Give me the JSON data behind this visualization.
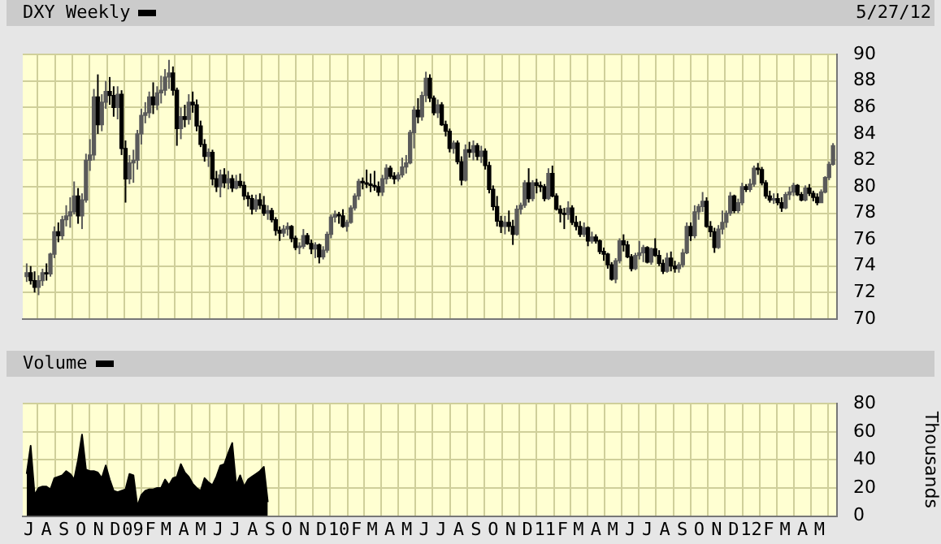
{
  "chart_data": [
    {
      "type": "candlestick",
      "title": "DXY Weekly",
      "subtitle": "5/27/12",
      "color": "#000000",
      "colors": [
        "#5a5a5a",
        "#000000",
        "#000000",
        "#5a5a5a",
        "#5a5a5a",
        "#000000",
        "#5a5a5a",
        "#5a5a5a",
        "#000000",
        "#5a5a5a",
        "#5a5a5a",
        "#5a5a5a",
        "#5a5a5a",
        "#000000",
        "#5a5a5a",
        "#5a5a5a",
        "#5a5a5a",
        "#5a5a5a",
        "#000000",
        "#5a5a5a",
        "#5a5a5a",
        "#000000",
        "#000000",
        "#5a5a5a",
        "#000000",
        "#000000",
        "#5a5a5a",
        "#5a5a5a",
        "#5a5a5a",
        "#5a5a5a",
        "#5a5a5a",
        "#5a5a5a",
        "#000000",
        "#5a5a5a",
        "#5a5a5a",
        "#5a5a5a",
        "#5a5a5a",
        "#000000",
        "#000000",
        "#5a5a5a",
        "#000000",
        "#5a5a5a",
        "#000000",
        "#000000",
        "#000000",
        "#000000",
        "#5a5a5a",
        "#000000",
        "#000000",
        "#5a5a5a",
        "#000000",
        "#5a5a5a",
        "#000000",
        "#5a5a5a",
        "#000000",
        "#000000",
        "#000000",
        "#000000",
        "#5a5a5a",
        "#000000",
        "#000000",
        "#5a5a5a",
        "#000000",
        "#000000",
        "#000000",
        "#5a5a5a",
        "#5a5a5a",
        "#000000",
        "#000000",
        "#5a5a5a",
        "#5a5a5a",
        "#000000",
        "#000000",
        "#5a5a5a",
        "#000000",
        "#5a5a5a",
        "#5a5a5a",
        "#5a5a5a",
        "#5a5a5a",
        "#000000",
        "#000000",
        "#5a5a5a",
        "#5a5a5a",
        "#5a5a5a",
        "#5a5a5a",
        "#000000",
        "#000000",
        "#000000",
        "#000000",
        "#000000",
        "#5a5a5a",
        "#5a5a5a",
        "#000000",
        "#000000",
        "#5a5a5a",
        "#5a5a5a",
        "#5a5a5a",
        "#5a5a5a",
        "#5a5a5a",
        "#000000",
        "#5a5a5a",
        "#5a5a5a",
        "#000000",
        "#000000",
        "#5a5a5a",
        "#000000",
        "#000000",
        "#000000",
        "#5a5a5a",
        "#000000",
        "#000000",
        "#5a5a5a",
        "#000000",
        "#5a5a5a",
        "#000000",
        "#5a5a5a",
        "#000000",
        "#000000",
        "#000000",
        "#000000",
        "#000000",
        "#5a5a5a",
        "#000000",
        "#000000",
        "#5a5a5a",
        "#5a5a5a",
        "#5a5a5a",
        "#000000",
        "#5a5a5a",
        "#000000",
        "#000000",
        "#000000",
        "#5a5a5a",
        "#000000",
        "#000000",
        "#000000",
        "#000000",
        "#5a5a5a",
        "#000000",
        "#000000",
        "#000000",
        "#5a5a5a",
        "#000000",
        "#5a5a5a",
        "#000000",
        "#000000",
        "#000000",
        "#000000",
        "#000000",
        "#5a5a5a",
        "#5a5a5a",
        "#000000",
        "#000000",
        "#000000",
        "#5a5a5a",
        "#5a5a5a",
        "#5a5a5a",
        "#000000",
        "#5a5a5a",
        "#000000",
        "#000000",
        "#000000",
        "#5a5a5a",
        "#000000",
        "#000000",
        "#5a5a5a",
        "#5a5a5a",
        "#5a5a5a",
        "#000000",
        "#5a5a5a",
        "#5a5a5a",
        "#5a5a5a",
        "#000000",
        "#000000",
        "#000000",
        "#5a5a5a",
        "#5a5a5a",
        "#5a5a5a",
        "#5a5a5a",
        "#000000",
        "#5a5a5a",
        "#5a5a5a",
        "#000000",
        "#5a5a5a",
        "#5a5a5a",
        "#000000",
        "#000000",
        "#000000",
        "#000000",
        "#5a5a5a",
        "#000000",
        "#000000",
        "#5a5a5a",
        "#5a5a5a",
        "#5a5a5a",
        "#000000",
        "#000000",
        "#5a5a5a",
        "#000000",
        "#000000",
        "#000000",
        "#5a5a5a",
        "#5a5a5a",
        "#5a5a5a",
        "#5a5a5a"
      ],
      "x": [
        "2008-06-27",
        "2008-07-04",
        "2008-07-11",
        "2008-07-18",
        "2008-07-25",
        "2008-08-01",
        "2008-08-08",
        "2008-08-15",
        "2008-08-22",
        "2008-08-29",
        "2008-09-05",
        "2008-09-12",
        "2008-09-19",
        "2008-09-26",
        "2008-10-03",
        "2008-10-10",
        "2008-10-17",
        "2008-10-24",
        "2008-10-31",
        "2008-11-07",
        "2008-11-14",
        "2008-11-21",
        "2008-11-28",
        "2008-12-05",
        "2008-12-12",
        "2008-12-19",
        "2008-12-26",
        "2009-01-02",
        "2009-01-09",
        "2009-01-16",
        "2009-01-23",
        "2009-01-30",
        "2009-02-06",
        "2009-02-13",
        "2009-02-20",
        "2009-02-27",
        "2009-03-06",
        "2009-03-13",
        "2009-03-20",
        "2009-03-27",
        "2009-04-03",
        "2009-04-10",
        "2009-04-17",
        "2009-04-24",
        "2009-05-01",
        "2009-05-08",
        "2009-05-15",
        "2009-05-22",
        "2009-05-29",
        "2009-06-05",
        "2009-06-12",
        "2009-06-19",
        "2009-06-26",
        "2009-07-03",
        "2009-07-10",
        "2009-07-17",
        "2009-07-24",
        "2009-07-31",
        "2009-08-07",
        "2009-08-14",
        "2009-08-21",
        "2009-08-28",
        "2009-09-04",
        "2009-09-11",
        "2009-09-18",
        "2009-09-25",
        "2009-10-02",
        "2009-10-09",
        "2009-10-16",
        "2009-10-23",
        "2009-10-30",
        "2009-11-06",
        "2009-11-13",
        "2009-11-20",
        "2009-11-27",
        "2009-12-04",
        "2009-12-11",
        "2009-12-18",
        "2009-12-25",
        "2010-01-01",
        "2010-01-08",
        "2010-01-15",
        "2010-01-22",
        "2010-01-29",
        "2010-02-05",
        "2010-02-12",
        "2010-02-19",
        "2010-02-26",
        "2010-03-05",
        "2010-03-12",
        "2010-03-19",
        "2010-03-26",
        "2010-04-02",
        "2010-04-09",
        "2010-04-16",
        "2010-04-23",
        "2010-04-30",
        "2010-05-07",
        "2010-05-14",
        "2010-05-21",
        "2010-05-28",
        "2010-06-04",
        "2010-06-11",
        "2010-06-18",
        "2010-06-25",
        "2010-07-02",
        "2010-07-09",
        "2010-07-16",
        "2010-07-23",
        "2010-07-30",
        "2010-08-06",
        "2010-08-13",
        "2010-08-20",
        "2010-08-27",
        "2010-09-03",
        "2010-09-10",
        "2010-09-17",
        "2010-09-24",
        "2010-10-01",
        "2010-10-08",
        "2010-10-15",
        "2010-10-22",
        "2010-10-29",
        "2010-11-05",
        "2010-11-12",
        "2010-11-19",
        "2010-11-26",
        "2010-12-03",
        "2010-12-10",
        "2010-12-17",
        "2010-12-24",
        "2010-12-31",
        "2011-01-07",
        "2011-01-14",
        "2011-01-21",
        "2011-01-28",
        "2011-02-04",
        "2011-02-11",
        "2011-02-18",
        "2011-02-25",
        "2011-03-04",
        "2011-03-11",
        "2011-03-18",
        "2011-03-25",
        "2011-04-01",
        "2011-04-08",
        "2011-04-15",
        "2011-04-22",
        "2011-04-29",
        "2011-05-06",
        "2011-05-13",
        "2011-05-20",
        "2011-05-27",
        "2011-06-03",
        "2011-06-10",
        "2011-06-17",
        "2011-06-24",
        "2011-07-01",
        "2011-07-08",
        "2011-07-15",
        "2011-07-22",
        "2011-07-29",
        "2011-08-05",
        "2011-08-12",
        "2011-08-19",
        "2011-08-26",
        "2011-09-02",
        "2011-09-09",
        "2011-09-16",
        "2011-09-23",
        "2011-09-30",
        "2011-10-07",
        "2011-10-14",
        "2011-10-21",
        "2011-10-28",
        "2011-11-04",
        "2011-11-11",
        "2011-11-18",
        "2011-11-25",
        "2011-12-02",
        "2011-12-09",
        "2011-12-16",
        "2011-12-23",
        "2011-12-30",
        "2012-01-06",
        "2012-01-13",
        "2012-01-20",
        "2012-01-27",
        "2012-02-03",
        "2012-02-10",
        "2012-02-17",
        "2012-02-24",
        "2012-03-02",
        "2012-03-09",
        "2012-03-16",
        "2012-03-23",
        "2012-03-30",
        "2012-04-06",
        "2012-04-13",
        "2012-04-20",
        "2012-04-27",
        "2012-05-04",
        "2012-05-11",
        "2012-05-18",
        "2012-05-25"
      ],
      "ohlc": [
        [
          73.2,
          74.2,
          72.8,
          73.5
        ],
        [
          73.5,
          74.0,
          72.6,
          72.9
        ],
        [
          72.9,
          73.6,
          72.0,
          72.4
        ],
        [
          72.4,
          73.3,
          71.8,
          72.9
        ],
        [
          72.9,
          73.8,
          72.5,
          73.5
        ],
        [
          73.5,
          74.2,
          72.9,
          73.4
        ],
        [
          73.4,
          75.0,
          73.2,
          74.9
        ],
        [
          74.9,
          77.0,
          74.6,
          76.6
        ],
        [
          76.6,
          77.3,
          75.8,
          76.3
        ],
        [
          76.3,
          77.8,
          76.0,
          77.5
        ],
        [
          77.5,
          78.6,
          77.0,
          77.8
        ],
        [
          77.8,
          79.2,
          76.9,
          78.1
        ],
        [
          78.1,
          80.4,
          77.9,
          79.3
        ],
        [
          79.3,
          79.9,
          77.2,
          77.8
        ],
        [
          77.8,
          79.5,
          76.8,
          79.0
        ],
        [
          79.0,
          82.5,
          78.8,
          82.0
        ],
        [
          82.0,
          83.6,
          81.2,
          82.4
        ],
        [
          82.4,
          87.4,
          82.0,
          86.8
        ],
        [
          86.8,
          88.5,
          84.0,
          84.7
        ],
        [
          84.7,
          87.0,
          84.2,
          86.4
        ],
        [
          86.4,
          88.0,
          85.9,
          87.2
        ],
        [
          87.2,
          88.3,
          86.2,
          86.9
        ],
        [
          86.9,
          87.6,
          85.3,
          86.0
        ],
        [
          86.0,
          87.6,
          85.1,
          87.0
        ],
        [
          87.0,
          87.3,
          82.4,
          82.9
        ],
        [
          82.9,
          83.5,
          78.8,
          80.6
        ],
        [
          80.6,
          82.4,
          80.2,
          81.8
        ],
        [
          81.8,
          82.8,
          80.3,
          82.0
        ],
        [
          82.0,
          84.3,
          81.3,
          84.0
        ],
        [
          84.0,
          85.9,
          83.2,
          85.4
        ],
        [
          85.4,
          86.4,
          84.8,
          85.6
        ],
        [
          85.6,
          87.2,
          85.2,
          86.8
        ],
        [
          86.8,
          87.9,
          85.5,
          86.2
        ],
        [
          86.2,
          87.6,
          85.8,
          87.1
        ],
        [
          87.1,
          88.4,
          86.3,
          87.3
        ],
        [
          87.3,
          88.9,
          86.9,
          88.3
        ],
        [
          88.3,
          89.6,
          87.4,
          88.6
        ],
        [
          88.6,
          89.1,
          86.9,
          87.3
        ],
        [
          87.3,
          87.5,
          83.1,
          84.4
        ],
        [
          84.4,
          86.0,
          83.6,
          85.3
        ],
        [
          85.3,
          86.2,
          84.5,
          85.1
        ],
        [
          85.1,
          87.0,
          84.7,
          86.4
        ],
        [
          86.4,
          87.2,
          85.6,
          86.2
        ],
        [
          86.2,
          86.6,
          84.2,
          84.6
        ],
        [
          84.6,
          85.0,
          83.0,
          83.2
        ],
        [
          83.2,
          83.6,
          81.9,
          82.3
        ],
        [
          82.3,
          82.9,
          81.5,
          82.6
        ],
        [
          82.6,
          82.8,
          80.1,
          80.6
        ],
        [
          80.6,
          81.2,
          79.6,
          80.0
        ],
        [
          80.0,
          81.3,
          79.2,
          80.9
        ],
        [
          80.9,
          81.4,
          79.9,
          80.3
        ],
        [
          80.3,
          81.2,
          79.8,
          80.6
        ],
        [
          80.6,
          80.9,
          79.6,
          79.9
        ],
        [
          79.9,
          80.9,
          79.8,
          80.4
        ],
        [
          80.4,
          81.0,
          79.9,
          80.1
        ],
        [
          80.1,
          80.4,
          79.0,
          79.3
        ],
        [
          79.3,
          79.6,
          78.5,
          79.1
        ],
        [
          79.1,
          79.4,
          77.9,
          78.3
        ],
        [
          78.3,
          79.4,
          78.1,
          79.0
        ],
        [
          79.0,
          79.5,
          78.3,
          78.6
        ],
        [
          78.6,
          79.3,
          77.8,
          78.0
        ],
        [
          78.0,
          78.6,
          77.5,
          78.2
        ],
        [
          78.2,
          78.4,
          77.3,
          77.5
        ],
        [
          77.5,
          77.7,
          76.3,
          76.7
        ],
        [
          76.7,
          77.0,
          75.9,
          76.5
        ],
        [
          76.5,
          77.1,
          76.2,
          76.8
        ],
        [
          76.8,
          77.3,
          76.3,
          77.0
        ],
        [
          77.0,
          77.1,
          75.8,
          76.1
        ],
        [
          76.1,
          76.3,
          75.2,
          75.4
        ],
        [
          75.4,
          75.8,
          74.9,
          75.5
        ],
        [
          75.5,
          76.8,
          75.3,
          76.3
        ],
        [
          76.3,
          76.5,
          75.6,
          75.7
        ],
        [
          75.7,
          76.0,
          74.9,
          75.3
        ],
        [
          75.3,
          75.8,
          74.6,
          75.6
        ],
        [
          75.6,
          75.7,
          74.2,
          74.7
        ],
        [
          74.7,
          75.5,
          74.5,
          75.2
        ],
        [
          75.2,
          76.6,
          75.0,
          76.4
        ],
        [
          76.4,
          77.9,
          76.1,
          77.7
        ],
        [
          77.7,
          78.2,
          77.3,
          77.9
        ],
        [
          77.9,
          78.1,
          77.2,
          77.8
        ],
        [
          77.8,
          78.3,
          76.9,
          77.0
        ],
        [
          77.0,
          77.5,
          76.6,
          77.3
        ],
        [
          77.3,
          78.6,
          77.2,
          78.4
        ],
        [
          78.4,
          79.5,
          78.2,
          79.3
        ],
        [
          79.3,
          80.6,
          79.0,
          80.4
        ],
        [
          80.4,
          80.7,
          79.8,
          80.3
        ],
        [
          80.3,
          81.3,
          79.9,
          80.2
        ],
        [
          80.2,
          81.0,
          79.6,
          80.1
        ],
        [
          80.1,
          81.2,
          79.7,
          80.0
        ],
        [
          80.0,
          80.4,
          79.3,
          79.6
        ],
        [
          79.6,
          80.9,
          79.3,
          80.6
        ],
        [
          80.6,
          81.7,
          80.2,
          81.4
        ],
        [
          81.4,
          81.6,
          80.6,
          80.8
        ],
        [
          80.8,
          81.1,
          80.2,
          80.6
        ],
        [
          80.6,
          81.1,
          80.4,
          80.9
        ],
        [
          80.9,
          82.2,
          80.7,
          81.5
        ],
        [
          81.5,
          82.4,
          81.0,
          81.8
        ],
        [
          81.8,
          84.3,
          81.7,
          84.1
        ],
        [
          84.1,
          86.1,
          82.9,
          85.8
        ],
        [
          85.8,
          86.7,
          84.8,
          85.3
        ],
        [
          85.3,
          87.2,
          85.0,
          86.9
        ],
        [
          86.9,
          88.7,
          86.4,
          88.2
        ],
        [
          88.2,
          88.5,
          86.4,
          86.7
        ],
        [
          86.7,
          86.9,
          85.4,
          85.6
        ],
        [
          85.6,
          86.6,
          85.2,
          86.2
        ],
        [
          86.2,
          86.4,
          84.6,
          84.7
        ],
        [
          84.7,
          85.0,
          83.8,
          84.2
        ],
        [
          84.2,
          84.4,
          82.6,
          82.9
        ],
        [
          82.9,
          83.5,
          82.5,
          83.3
        ],
        [
          83.3,
          83.5,
          81.7,
          81.9
        ],
        [
          81.9,
          82.3,
          80.1,
          80.5
        ],
        [
          80.5,
          83.2,
          80.4,
          82.8
        ],
        [
          82.8,
          83.4,
          82.2,
          82.6
        ],
        [
          82.6,
          83.5,
          82.0,
          83.1
        ],
        [
          83.1,
          83.3,
          82.0,
          82.3
        ],
        [
          82.3,
          83.1,
          81.8,
          82.7
        ],
        [
          82.7,
          82.9,
          81.3,
          81.6
        ],
        [
          81.6,
          81.9,
          79.5,
          79.8
        ],
        [
          79.8,
          80.1,
          78.2,
          78.5
        ],
        [
          78.5,
          79.3,
          77.0,
          77.4
        ],
        [
          77.4,
          77.8,
          76.5,
          77.0
        ],
        [
          77.0,
          77.8,
          76.4,
          77.3
        ],
        [
          77.3,
          78.2,
          76.6,
          77.0
        ],
        [
          77.0,
          77.5,
          75.6,
          76.4
        ],
        [
          76.4,
          78.6,
          76.3,
          78.3
        ],
        [
          78.3,
          78.8,
          77.9,
          78.6
        ],
        [
          78.6,
          80.5,
          78.4,
          80.3
        ],
        [
          80.3,
          81.4,
          78.8,
          79.1
        ],
        [
          79.1,
          80.5,
          78.9,
          80.3
        ],
        [
          80.3,
          80.6,
          79.5,
          80.1
        ],
        [
          80.1,
          80.4,
          79.6,
          80.0
        ],
        [
          80.0,
          80.2,
          78.9,
          79.1
        ],
        [
          79.1,
          81.4,
          79.0,
          81.0
        ],
        [
          81.0,
          81.6,
          79.2,
          79.3
        ],
        [
          79.3,
          79.5,
          78.2,
          78.3
        ],
        [
          78.3,
          78.6,
          77.3,
          78.0
        ],
        [
          78.0,
          78.4,
          76.8,
          77.9
        ],
        [
          77.9,
          78.9,
          77.5,
          78.4
        ],
        [
          78.4,
          78.6,
          77.1,
          77.3
        ],
        [
          77.3,
          77.8,
          76.7,
          77.0
        ],
        [
          77.0,
          77.4,
          76.2,
          76.4
        ],
        [
          76.4,
          77.3,
          76.2,
          76.9
        ],
        [
          76.9,
          77.0,
          75.5,
          75.9
        ],
        [
          75.9,
          76.6,
          75.7,
          76.2
        ],
        [
          76.2,
          76.4,
          75.7,
          75.9
        ],
        [
          75.9,
          76.0,
          74.9,
          75.1
        ],
        [
          75.1,
          75.4,
          74.4,
          74.9
        ],
        [
          74.9,
          75.0,
          73.8,
          74.1
        ],
        [
          74.1,
          74.3,
          72.9,
          73.0
        ],
        [
          73.0,
          74.6,
          72.7,
          74.4
        ],
        [
          74.4,
          76.1,
          74.2,
          75.9
        ],
        [
          75.9,
          76.4,
          75.1,
          75.6
        ],
        [
          75.6,
          75.9,
          74.6,
          74.7
        ],
        [
          74.7,
          74.9,
          73.6,
          73.8
        ],
        [
          73.8,
          75.0,
          73.7,
          74.8
        ],
        [
          74.8,
          75.9,
          74.5,
          75.0
        ],
        [
          75.0,
          75.6,
          74.3,
          75.4
        ],
        [
          75.4,
          75.5,
          74.2,
          74.3
        ],
        [
          74.3,
          75.4,
          74.1,
          75.3
        ],
        [
          75.3,
          76.1,
          74.7,
          74.8
        ],
        [
          74.8,
          75.2,
          74.0,
          74.2
        ],
        [
          74.2,
          74.5,
          73.4,
          73.6
        ],
        [
          73.6,
          75.0,
          73.5,
          74.6
        ],
        [
          74.6,
          75.1,
          73.6,
          74.0
        ],
        [
          74.0,
          74.4,
          73.5,
          73.8
        ],
        [
          73.8,
          74.3,
          73.5,
          74.1
        ],
        [
          74.1,
          75.3,
          73.9,
          75.0
        ],
        [
          75.0,
          77.3,
          74.9,
          77.0
        ],
        [
          77.0,
          77.3,
          75.9,
          76.3
        ],
        [
          76.3,
          78.6,
          76.1,
          78.1
        ],
        [
          78.1,
          78.7,
          77.5,
          78.5
        ],
        [
          78.5,
          79.6,
          78.1,
          78.9
        ],
        [
          78.9,
          79.2,
          76.9,
          77.0
        ],
        [
          77.0,
          77.4,
          76.2,
          76.6
        ],
        [
          76.6,
          76.9,
          75.0,
          75.4
        ],
        [
          75.4,
          77.1,
          75.3,
          76.8
        ],
        [
          76.8,
          78.2,
          76.4,
          77.3
        ],
        [
          77.3,
          78.2,
          76.9,
          78.0
        ],
        [
          78.0,
          79.6,
          77.8,
          79.3
        ],
        [
          79.3,
          79.4,
          78.0,
          78.2
        ],
        [
          78.2,
          79.1,
          78.0,
          78.8
        ],
        [
          78.8,
          80.3,
          78.6,
          80.0
        ],
        [
          80.0,
          80.2,
          79.6,
          79.8
        ],
        [
          79.8,
          80.6,
          79.6,
          80.2
        ],
        [
          80.2,
          81.6,
          80.0,
          81.4
        ],
        [
          81.4,
          81.8,
          80.9,
          81.3
        ],
        [
          81.3,
          81.5,
          80.1,
          80.3
        ],
        [
          80.3,
          80.5,
          79.1,
          79.3
        ],
        [
          79.3,
          79.7,
          78.8,
          79.0
        ],
        [
          79.0,
          79.5,
          78.7,
          79.1
        ],
        [
          79.1,
          79.5,
          78.6,
          78.8
        ],
        [
          78.8,
          79.2,
          78.1,
          78.4
        ],
        [
          78.4,
          79.6,
          78.3,
          79.4
        ],
        [
          79.4,
          80.0,
          79.0,
          79.6
        ],
        [
          79.6,
          80.3,
          79.3,
          80.1
        ],
        [
          80.1,
          80.2,
          79.3,
          79.4
        ],
        [
          79.4,
          79.6,
          78.9,
          79.0
        ],
        [
          79.0,
          80.1,
          78.9,
          79.9
        ],
        [
          79.9,
          80.2,
          79.3,
          79.5
        ],
        [
          79.5,
          79.7,
          78.9,
          79.2
        ],
        [
          79.2,
          79.5,
          78.6,
          78.8
        ],
        [
          78.8,
          79.8,
          78.8,
          79.6
        ],
        [
          79.6,
          80.8,
          79.5,
          80.7
        ],
        [
          80.7,
          81.9,
          80.5,
          81.7
        ],
        [
          81.7,
          83.3,
          81.6,
          83.1
        ]
      ],
      "xlim": [
        "2008-06-20",
        "2012-06-01"
      ],
      "xticks": [
        {
          "value": "2008-07-01",
          "label": null
        },
        {
          "value": "2008-08-01",
          "label": null
        },
        {
          "value": "2008-09-01",
          "label": null
        },
        {
          "value": "2008-10-01",
          "label": null
        },
        {
          "value": "2008-11-01",
          "label": null
        },
        {
          "value": "2008-12-01",
          "label": null
        },
        {
          "value": "2009-01-01",
          "label": null
        },
        {
          "value": "2009-02-01",
          "label": null
        },
        {
          "value": "2009-03-01",
          "label": null
        },
        {
          "value": "2009-04-01",
          "label": null
        },
        {
          "value": "2009-05-01",
          "label": null
        },
        {
          "value": "2009-06-01",
          "label": null
        },
        {
          "value": "2009-07-01",
          "label": null
        },
        {
          "value": "2009-08-01",
          "label": null
        },
        {
          "value": "2009-09-01",
          "label": null
        },
        {
          "value": "2009-10-01",
          "label": null
        },
        {
          "value": "2009-11-01",
          "label": null
        },
        {
          "value": "2009-12-01",
          "label": null
        },
        {
          "value": "2010-01-01",
          "label": null
        },
        {
          "value": "2010-02-01",
          "label": null
        },
        {
          "value": "2010-03-01",
          "label": null
        },
        {
          "value": "2010-04-01",
          "label": null
        },
        {
          "value": "2010-05-01",
          "label": null
        },
        {
          "value": "2010-06-01",
          "label": null
        },
        {
          "value": "2010-07-01",
          "label": null
        },
        {
          "value": "2010-08-01",
          "label": null
        },
        {
          "value": "2010-09-01",
          "label": null
        },
        {
          "value": "2010-10-01",
          "label": null
        },
        {
          "value": "2010-11-01",
          "label": null
        },
        {
          "value": "2010-12-01",
          "label": null
        },
        {
          "value": "2011-01-01",
          "label": null
        },
        {
          "value": "2011-02-01",
          "label": null
        },
        {
          "value": "2011-03-01",
          "label": null
        },
        {
          "value": "2011-04-01",
          "label": null
        },
        {
          "value": "2011-05-01",
          "label": null
        },
        {
          "value": "2011-06-01",
          "label": null
        },
        {
          "value": "2011-07-01",
          "label": null
        },
        {
          "value": "2011-08-01",
          "label": null
        },
        {
          "value": "2011-09-01",
          "label": null
        },
        {
          "value": "2011-10-01",
          "label": null
        },
        {
          "value": "2011-11-01",
          "label": null
        },
        {
          "value": "2011-12-01",
          "label": null
        },
        {
          "value": "2012-01-01",
          "label": null
        },
        {
          "value": "2012-02-01",
          "label": null
        },
        {
          "value": "2012-03-01",
          "label": null
        },
        {
          "value": "2012-04-01",
          "label": null
        },
        {
          "value": "2012-05-01",
          "label": null
        }
      ],
      "ylim": [
        70,
        90
      ],
      "yticks": [
        70,
        72,
        74,
        76,
        78,
        80,
        82,
        84,
        86,
        88,
        90
      ],
      "grid": true,
      "tick_labels": "y"
    },
    {
      "type": "area",
      "title": "Volume",
      "ylabel": "Thousands",
      "color": "#000000",
      "x": [
        "2008-06-27",
        "2008-07-04",
        "2008-07-11",
        "2008-07-18",
        "2008-07-25",
        "2008-08-01",
        "2008-08-08",
        "2008-08-15",
        "2008-08-22",
        "2008-08-29",
        "2008-09-05",
        "2008-09-12",
        "2008-09-19",
        "2008-09-26",
        "2008-10-03",
        "2008-10-10",
        "2008-10-17",
        "2008-10-24",
        "2008-10-31",
        "2008-11-07",
        "2008-11-14",
        "2008-11-21",
        "2008-11-28",
        "2008-12-05",
        "2008-12-12",
        "2008-12-19",
        "2008-12-26",
        "2009-01-02",
        "2009-01-09",
        "2009-01-16",
        "2009-01-23",
        "2009-01-30",
        "2009-02-06",
        "2009-02-13",
        "2009-02-20",
        "2009-02-27",
        "2009-03-06",
        "2009-03-13",
        "2009-03-20",
        "2009-03-27",
        "2009-04-03",
        "2009-04-10",
        "2009-04-17",
        "2009-04-24",
        "2009-05-01",
        "2009-05-08",
        "2009-05-15",
        "2009-05-22",
        "2009-05-29",
        "2009-06-05",
        "2009-06-12",
        "2009-06-19",
        "2009-06-26",
        "2009-07-03",
        "2009-07-10",
        "2009-07-17",
        "2009-07-24",
        "2009-07-31",
        "2009-08-07",
        "2009-08-14",
        "2009-08-21",
        "2009-08-28"
      ],
      "values": [
        30,
        50,
        15,
        20,
        21,
        21,
        19,
        27,
        28,
        29,
        32,
        30,
        26,
        40,
        58,
        33,
        32,
        32,
        31,
        27,
        36,
        26,
        18,
        17,
        18,
        19,
        30,
        29,
        7,
        15,
        18,
        19,
        19,
        20,
        20,
        26,
        22,
        27,
        28,
        37,
        31,
        28,
        23,
        20,
        18,
        27,
        24,
        22,
        28,
        36,
        37,
        45,
        52,
        22,
        29,
        21,
        26,
        28,
        30,
        32,
        35,
        10
      ],
      "xlim": [
        "2008-06-20",
        "2012-06-01"
      ],
      "xticks": [
        {
          "value": "2008-07-01",
          "label": "J"
        },
        {
          "value": "2008-08-01",
          "label": "A"
        },
        {
          "value": "2008-09-01",
          "label": "S"
        },
        {
          "value": "2008-10-01",
          "label": "O"
        },
        {
          "value": "2008-11-01",
          "label": "N"
        },
        {
          "value": "2008-12-01",
          "label": "D"
        },
        {
          "value": "2009-01-01",
          "label": "09"
        },
        {
          "value": "2009-02-01",
          "label": "F"
        },
        {
          "value": "2009-03-01",
          "label": "M"
        },
        {
          "value": "2009-04-01",
          "label": "A"
        },
        {
          "value": "2009-05-01",
          "label": "M"
        },
        {
          "value": "2009-06-01",
          "label": "J"
        },
        {
          "value": "2009-07-01",
          "label": "J"
        },
        {
          "value": "2009-08-01",
          "label": "A"
        },
        {
          "value": "2009-09-01",
          "label": "S"
        },
        {
          "value": "2009-10-01",
          "label": "O"
        },
        {
          "value": "2009-11-01",
          "label": "N"
        },
        {
          "value": "2009-12-01",
          "label": "D"
        },
        {
          "value": "2010-01-01",
          "label": "10"
        },
        {
          "value": "2010-02-01",
          "label": "F"
        },
        {
          "value": "2010-03-01",
          "label": "M"
        },
        {
          "value": "2010-04-01",
          "label": "A"
        },
        {
          "value": "2010-05-01",
          "label": "M"
        },
        {
          "value": "2010-06-01",
          "label": "J"
        },
        {
          "value": "2010-07-01",
          "label": "J"
        },
        {
          "value": "2010-08-01",
          "label": "A"
        },
        {
          "value": "2010-09-01",
          "label": "S"
        },
        {
          "value": "2010-10-01",
          "label": "O"
        },
        {
          "value": "2010-11-01",
          "label": "N"
        },
        {
          "value": "2010-12-01",
          "label": "D"
        },
        {
          "value": "2011-01-01",
          "label": "11"
        },
        {
          "value": "2011-02-01",
          "label": "F"
        },
        {
          "value": "2011-03-01",
          "label": "M"
        },
        {
          "value": "2011-04-01",
          "label": "A"
        },
        {
          "value": "2011-05-01",
          "label": "M"
        },
        {
          "value": "2011-06-01",
          "label": "J"
        },
        {
          "value": "2011-07-01",
          "label": "J"
        },
        {
          "value": "2011-08-01",
          "label": "A"
        },
        {
          "value": "2011-09-01",
          "label": "S"
        },
        {
          "value": "2011-10-01",
          "label": "O"
        },
        {
          "value": "2011-11-01",
          "label": "N"
        },
        {
          "value": "2011-12-01",
          "label": "D"
        },
        {
          "value": "2012-01-01",
          "label": "12"
        },
        {
          "value": "2012-02-01",
          "label": "F"
        },
        {
          "value": "2012-03-01",
          "label": "M"
        },
        {
          "value": "2012-04-01",
          "label": "A"
        },
        {
          "value": "2012-05-01",
          "label": "M"
        }
      ],
      "ylim": [
        0,
        80
      ],
      "yticks": [
        0,
        20,
        40,
        60,
        80
      ],
      "grid": true
    }
  ]
}
